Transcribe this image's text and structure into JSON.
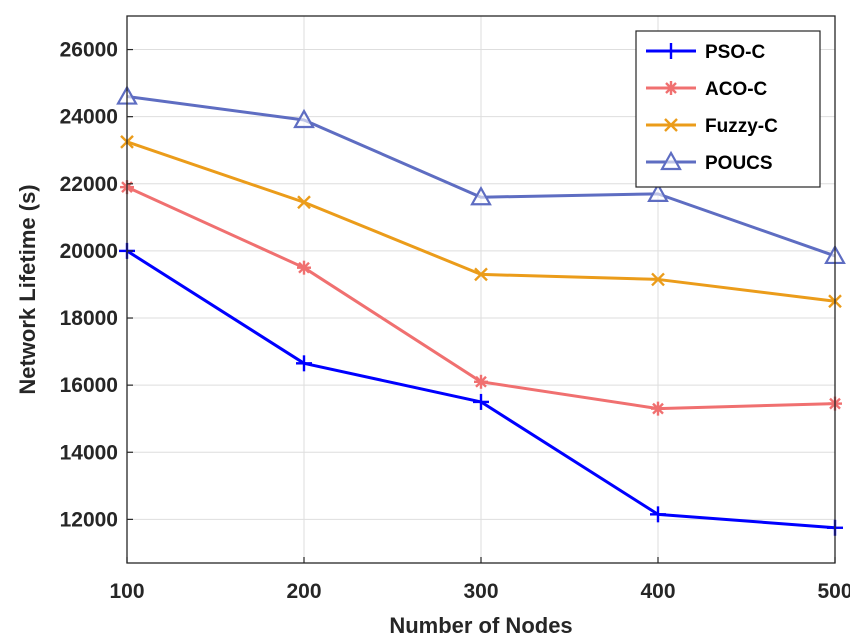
{
  "chart_data": {
    "type": "line",
    "xlabel": "Number of Nodes",
    "ylabel": "Network Lifetime (s)",
    "x": [
      100,
      200,
      300,
      400,
      500
    ],
    "xlim": [
      100,
      500
    ],
    "ylim": [
      10700,
      27000
    ],
    "xticks": [
      100,
      200,
      300,
      400,
      500
    ],
    "yticks": [
      12000,
      14000,
      16000,
      18000,
      20000,
      22000,
      24000,
      26000
    ],
    "x_tick_labels": [
      "100",
      "200",
      "300",
      "400",
      "500"
    ],
    "y_tick_labels": [
      "12000",
      "14000",
      "16000",
      "18000",
      "20000",
      "22000",
      "24000",
      "26000"
    ],
    "grid": true,
    "legend_position": "top-right",
    "series": [
      {
        "name": "PSO-C",
        "color": "#0000ff",
        "marker": "plus",
        "values": [
          20000,
          16650,
          15500,
          12150,
          11750
        ]
      },
      {
        "name": "ACO-C",
        "color": "#f07070",
        "marker": "asterisk",
        "values": [
          21900,
          19500,
          16100,
          15300,
          15450
        ]
      },
      {
        "name": "Fuzzy-C",
        "color": "#eb9c1a",
        "marker": "x",
        "values": [
          23250,
          21450,
          19300,
          19150,
          18500
        ]
      },
      {
        "name": "POUCS",
        "color": "#5e6dc2",
        "marker": "triangle",
        "values": [
          24600,
          23900,
          21600,
          21700,
          19850
        ]
      }
    ]
  }
}
